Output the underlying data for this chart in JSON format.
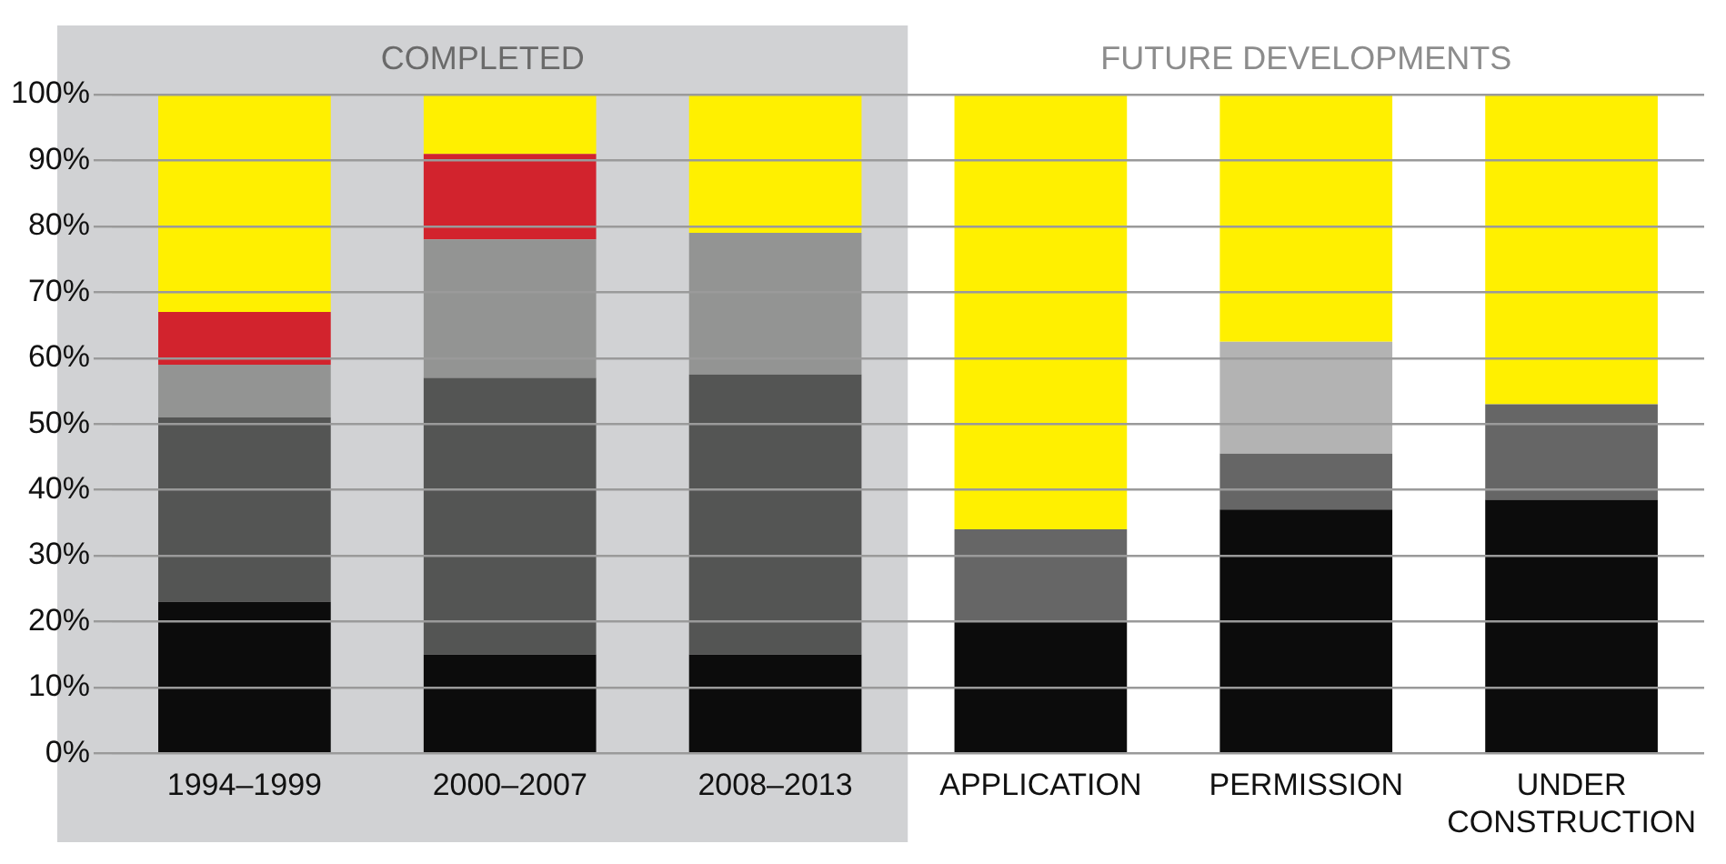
{
  "chart_data": {
    "type": "bar",
    "stacked": true,
    "categories": [
      "1994–1999",
      "2000–2007",
      "2008–2013",
      "APPLICATION",
      "PERMISSION",
      "UNDER CONSTRUCTION"
    ],
    "series": [
      {
        "color": "#0c0c0c",
        "values": [
          23,
          15,
          15,
          20,
          37,
          38.5
        ]
      },
      {
        "colors": [
          "#545554",
          "#545554",
          "#545554",
          "#666666",
          "#666666",
          "#666666"
        ],
        "values": [
          28,
          42,
          42.5,
          14,
          8.5,
          14.5
        ]
      },
      {
        "colors": [
          "#939493",
          "#939493",
          "#939493",
          "#b3b3b3",
          "#b3b3b3",
          "#b3b3b3"
        ],
        "values": [
          8,
          21,
          21.5,
          null,
          17,
          null
        ]
      },
      {
        "color": "#d2232d",
        "values": [
          8,
          13,
          null,
          null,
          null,
          null
        ]
      },
      {
        "color": "#fff000",
        "values": [
          33,
          9,
          21,
          66,
          37.5,
          47
        ]
      }
    ],
    "ylim": [
      0,
      100
    ],
    "yticks": [
      {
        "value": 0,
        "label": "0%"
      },
      {
        "value": 10,
        "label": "10%"
      },
      {
        "value": 20,
        "label": "20%"
      },
      {
        "value": 30,
        "label": "30%"
      },
      {
        "value": 40,
        "label": "40%"
      },
      {
        "value": 50,
        "label": "50%"
      },
      {
        "value": 60,
        "label": "60%"
      },
      {
        "value": 70,
        "label": "70%"
      },
      {
        "value": 80,
        "label": "80%"
      },
      {
        "value": 90,
        "label": "90%"
      },
      {
        "value": 100,
        "label": "100%"
      }
    ],
    "grid": "y",
    "legend": false,
    "bands": [
      {
        "axis": "x",
        "from": "1994–1999",
        "to": "2008–2013",
        "label": "COMPLETED",
        "color": "#d1d2d4"
      },
      {
        "axis": "x",
        "from": "APPLICATION",
        "to": "UNDER CONSTRUCTION",
        "label": "FUTURE DEVELOPMENTS",
        "color": "#ffffff"
      }
    ]
  }
}
